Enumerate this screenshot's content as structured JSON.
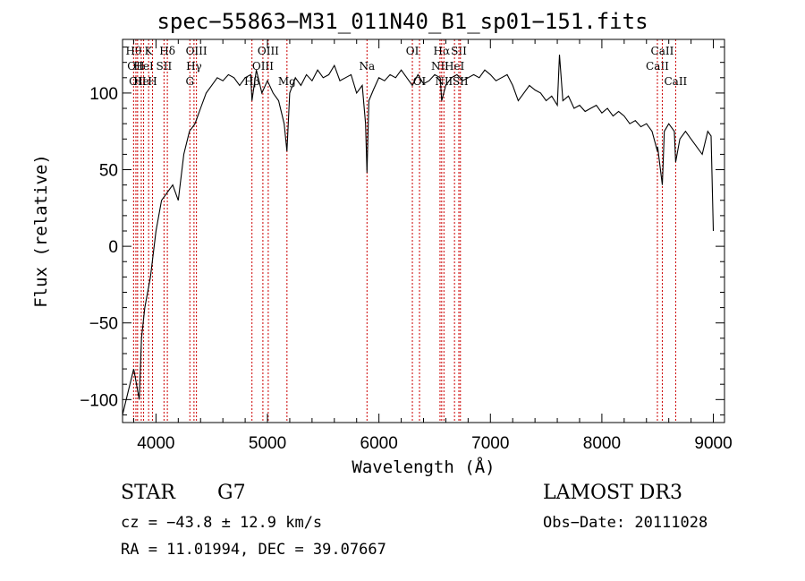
{
  "chart_data": {
    "type": "line",
    "title": "spec−55863−M31_011N40_B1_sp01−151.fits",
    "xlabel": "Wavelength (Å)",
    "ylabel": "Flux (relative)",
    "xlim": [
      3700,
      9100
    ],
    "ylim": [
      -115,
      135
    ],
    "xticks": [
      4000,
      5000,
      6000,
      7000,
      8000,
      9000
    ],
    "yticks": [
      -100,
      -50,
      0,
      50,
      100
    ],
    "ytick_labels": [
      "−100",
      "−50",
      "0",
      "50",
      "100"
    ],
    "grid": false,
    "series": [
      {
        "x": [
          3700,
          3750,
          3800,
          3850,
          3870,
          3900,
          3950,
          4000,
          4050,
          4100,
          4150,
          4200,
          4250,
          4300,
          4350,
          4400,
          4450,
          4500,
          4550,
          4600,
          4650,
          4700,
          4750,
          4800,
          4850,
          4861,
          4900,
          4950,
          5000,
          5050,
          5100,
          5150,
          5175,
          5200,
          5250,
          5300,
          5350,
          5400,
          5450,
          5500,
          5550,
          5600,
          5650,
          5700,
          5750,
          5800,
          5850,
          5880,
          5893,
          5910,
          5950,
          6000,
          6050,
          6100,
          6150,
          6200,
          6250,
          6300,
          6350,
          6400,
          6450,
          6500,
          6550,
          6563,
          6600,
          6650,
          6700,
          6750,
          6800,
          6850,
          6900,
          6950,
          7000,
          7050,
          7100,
          7150,
          7200,
          7250,
          7300,
          7350,
          7400,
          7450,
          7500,
          7550,
          7600,
          7620,
          7650,
          7700,
          7750,
          7800,
          7850,
          7900,
          7950,
          8000,
          8050,
          8100,
          8150,
          8200,
          8250,
          8300,
          8350,
          8400,
          8450,
          8498,
          8500,
          8542,
          8560,
          8600,
          8650,
          8662,
          8700,
          8750,
          8800,
          8850,
          8900,
          8950,
          8980,
          9000
        ],
        "y": [
          -110,
          -95,
          -80,
          -100,
          -60,
          -40,
          -20,
          10,
          30,
          35,
          40,
          30,
          60,
          75,
          80,
          90,
          100,
          105,
          110,
          108,
          112,
          110,
          105,
          110,
          112,
          95,
          115,
          100,
          108,
          100,
          95,
          80,
          62,
          100,
          110,
          105,
          112,
          108,
          115,
          110,
          112,
          118,
          108,
          110,
          112,
          100,
          105,
          80,
          48,
          95,
          102,
          110,
          108,
          112,
          110,
          115,
          110,
          105,
          112,
          106,
          108,
          112,
          110,
          95,
          105,
          110,
          112,
          108,
          110,
          112,
          110,
          115,
          112,
          108,
          110,
          112,
          105,
          95,
          100,
          105,
          102,
          100,
          95,
          98,
          92,
          125,
          95,
          98,
          90,
          92,
          88,
          90,
          92,
          87,
          90,
          85,
          88,
          85,
          80,
          82,
          78,
          80,
          75,
          62,
          65,
          40,
          75,
          80,
          75,
          55,
          70,
          75,
          70,
          65,
          60,
          75,
          72,
          10
        ]
      }
    ],
    "lines": [
      {
        "x": 3799,
        "label": "Hθ",
        "row": 1
      },
      {
        "x": 3820,
        "label": "OII",
        "row": 2
      },
      {
        "x": 3835,
        "label": "OII",
        "row": 3
      },
      {
        "x": 3868,
        "label": "He",
        "row": 3
      },
      {
        "x": 3889,
        "label": "HeI",
        "row": 2
      },
      {
        "x": 3934,
        "label": "K",
        "row": 1
      },
      {
        "x": 3969,
        "label": "H",
        "row": 3
      },
      {
        "x": 4072,
        "label": "SII",
        "row": 2
      },
      {
        "x": 4102,
        "label": "Hδ",
        "row": 1
      },
      {
        "x": 4304,
        "label": "G",
        "row": 3
      },
      {
        "x": 4341,
        "label": "Hγ",
        "row": 2
      },
      {
        "x": 4363,
        "label": "OIII",
        "row": 1
      },
      {
        "x": 4861,
        "label": "Hβ",
        "row": 3
      },
      {
        "x": 4959,
        "label": "OIII",
        "row": 2
      },
      {
        "x": 5007,
        "label": "OIII",
        "row": 1
      },
      {
        "x": 5175,
        "label": "Mg",
        "row": 3
      },
      {
        "x": 5893,
        "label": "Na",
        "row": 2
      },
      {
        "x": 6300,
        "label": "OI",
        "row": 1
      },
      {
        "x": 6364,
        "label": "OI",
        "row": 3
      },
      {
        "x": 6548,
        "label": "NII",
        "row": 2
      },
      {
        "x": 6563,
        "label": "Hα",
        "row": 1
      },
      {
        "x": 6583,
        "label": "NII",
        "row": 3
      },
      {
        "x": 6678,
        "label": "HeI",
        "row": 2
      },
      {
        "x": 6717,
        "label": "SII",
        "row": 1
      },
      {
        "x": 6731,
        "label": "SII",
        "row": 3
      },
      {
        "x": 8498,
        "label": "CaII",
        "row": 2
      },
      {
        "x": 8542,
        "label": "CaII",
        "row": 1
      },
      {
        "x": 8662,
        "label": "CaII",
        "row": 3
      }
    ]
  },
  "info": {
    "class_label": "STAR",
    "subclass": "G7",
    "survey": "LAMOST DR3",
    "cz": "cz = −43.8 ± 12.9 km/s",
    "obs_date": "Obs−Date: 20111028",
    "radec": "RA =  11.01994, DEC =  39.07667"
  }
}
